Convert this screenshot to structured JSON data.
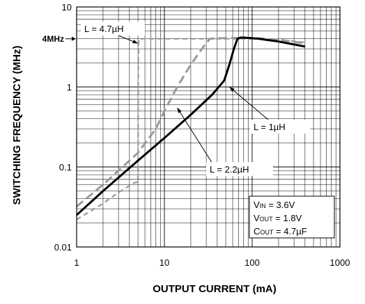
{
  "chart_data": {
    "type": "line",
    "xscale": "log",
    "yscale": "log",
    "xlim": [
      1,
      1000
    ],
    "ylim": [
      0.01,
      10
    ],
    "grid": true,
    "xlabel": "OUTPUT CURRENT (mA)",
    "ylabel": "SWITCHING FREQUENCY (MHz)",
    "x_ticks": [
      "1",
      "10",
      "100",
      "1000"
    ],
    "y_ticks": [
      "0.01",
      "0.1",
      "1",
      "10"
    ],
    "marker_label": "4MHz",
    "marker_value": 4,
    "conditions": {
      "vin": "= 3.6V",
      "vout": "= 1.8V",
      "cout": "= 4.7µF"
    },
    "series": [
      {
        "name": "L = 1µH",
        "style": "solid",
        "color": "#000000",
        "x": [
          1,
          2,
          5,
          10,
          20,
          35,
          48,
          55,
          62,
          68,
          75,
          90,
          120,
          200,
          300,
          400
        ],
        "y": [
          0.025,
          0.05,
          0.12,
          0.23,
          0.45,
          0.8,
          1.2,
          1.9,
          3.0,
          4.0,
          4.15,
          4.1,
          4.0,
          3.7,
          3.4,
          3.2
        ]
      },
      {
        "name": "L = 2.2µH",
        "style": "dashed",
        "color": "#999999",
        "x": [
          1,
          2,
          5,
          8,
          10,
          14,
          20,
          28,
          33,
          40,
          60,
          100,
          200,
          400
        ],
        "y": [
          0.032,
          0.06,
          0.15,
          0.3,
          0.5,
          1.0,
          1.9,
          3.2,
          4.0,
          4.05,
          4.1,
          4.1,
          3.9,
          3.5
        ]
      },
      {
        "name": "L = 4.7µH",
        "style": "dashed",
        "color": "#999999",
        "x": [
          1,
          2,
          3,
          4.5,
          5,
          5.05,
          5.1,
          5.5,
          10,
          30,
          100,
          200,
          400
        ],
        "y": [
          0.022,
          0.035,
          0.048,
          0.063,
          0.065,
          2.0,
          4.0,
          4.0,
          4.0,
          4.0,
          4.0,
          3.9,
          3.6
        ]
      }
    ],
    "labels": [
      {
        "series": 2,
        "text": "L = 4.7µH",
        "anchor_x": 5,
        "anchor_y": 3.5
      },
      {
        "series": 0,
        "text": "L = 1µH",
        "anchor_x": 55,
        "anchor_y": 1.0
      },
      {
        "series": 1,
        "text": "L = 2.2µH",
        "anchor_x": 14,
        "anchor_y": 0.55
      }
    ]
  }
}
